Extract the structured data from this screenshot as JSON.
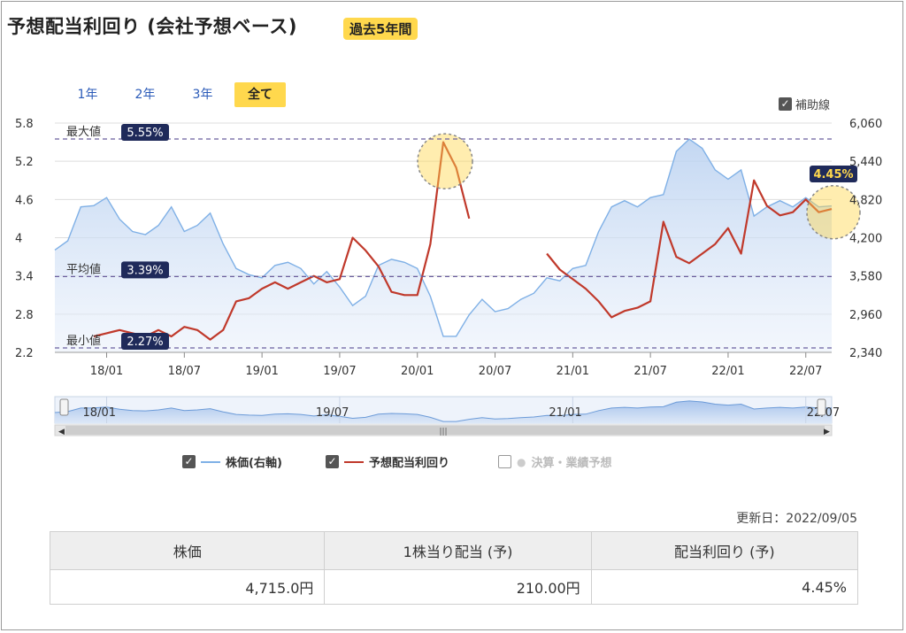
{
  "header": {
    "title": "予想配当利回り (会社予想ベース)",
    "badge": "過去5年間"
  },
  "range_buttons": [
    {
      "label": "1年",
      "active": false
    },
    {
      "label": "2年",
      "active": false
    },
    {
      "label": "3年",
      "active": false
    },
    {
      "label": "全て",
      "active": true
    }
  ],
  "aux_lines_label": "補助線",
  "colors": {
    "price": "#7fb0e6",
    "yield": "#c0392b",
    "accent": "#ffd84d",
    "label_bg": "#1f2a5a"
  },
  "chart_data": {
    "type": "line",
    "x_ticks": [
      "18/01",
      "18/07",
      "19/01",
      "19/07",
      "20/01",
      "20/07",
      "21/01",
      "21/07",
      "22/01",
      "22/07"
    ],
    "left_axis": {
      "ticks": [
        "5.8",
        "5.2",
        "4.6",
        "4",
        "3.4",
        "2.8",
        "2.2"
      ],
      "ylim": [
        2.2,
        5.8
      ]
    },
    "right_axis": {
      "ticks": [
        "6,060",
        "5,440",
        "4,820",
        "4,200",
        "3,580",
        "2,960",
        "2,340"
      ],
      "ylim": [
        2340,
        6060
      ]
    },
    "reference_lines": [
      {
        "label": "最大値",
        "value_label": "5.55%",
        "value": 5.55
      },
      {
        "label": "平均値",
        "value_label": "3.39%",
        "value": 3.39
      },
      {
        "label": "最小値",
        "value_label": "2.27%",
        "value": 2.27
      }
    ],
    "current_label": "4.45%",
    "series": [
      {
        "name": "株価(右軸)",
        "axis": "right",
        "points": [
          [
            "2017-09",
            4000
          ],
          [
            "2017-10",
            4150
          ],
          [
            "2017-11",
            4700
          ],
          [
            "2017-12",
            4720
          ],
          [
            "2018-01",
            4850
          ],
          [
            "2018-02",
            4500
          ],
          [
            "2018-03",
            4300
          ],
          [
            "2018-04",
            4250
          ],
          [
            "2018-05",
            4400
          ],
          [
            "2018-06",
            4700
          ],
          [
            "2018-07",
            4300
          ],
          [
            "2018-08",
            4400
          ],
          [
            "2018-09",
            4600
          ],
          [
            "2018-10",
            4100
          ],
          [
            "2018-11",
            3700
          ],
          [
            "2018-12",
            3600
          ],
          [
            "2019-01",
            3550
          ],
          [
            "2019-02",
            3750
          ],
          [
            "2019-03",
            3800
          ],
          [
            "2019-04",
            3700
          ],
          [
            "2019-05",
            3450
          ],
          [
            "2019-06",
            3650
          ],
          [
            "2019-07",
            3400
          ],
          [
            "2019-08",
            3100
          ],
          [
            "2019-09",
            3250
          ],
          [
            "2019-10",
            3750
          ],
          [
            "2019-11",
            3850
          ],
          [
            "2019-12",
            3800
          ],
          [
            "2020-01",
            3700
          ],
          [
            "2020-02",
            3250
          ],
          [
            "2020-03",
            2600
          ],
          [
            "2020-04",
            2600
          ],
          [
            "2020-05",
            2950
          ],
          [
            "2020-06",
            3200
          ],
          [
            "2020-07",
            3000
          ],
          [
            "2020-08",
            3050
          ],
          [
            "2020-09",
            3200
          ],
          [
            "2020-10",
            3300
          ],
          [
            "2020-11",
            3550
          ],
          [
            "2020-12",
            3500
          ],
          [
            "2021-01",
            3700
          ],
          [
            "2021-02",
            3750
          ],
          [
            "2021-03",
            4300
          ],
          [
            "2021-04",
            4700
          ],
          [
            "2021-05",
            4800
          ],
          [
            "2021-06",
            4700
          ],
          [
            "2021-07",
            4850
          ],
          [
            "2021-08",
            4900
          ],
          [
            "2021-09",
            5600
          ],
          [
            "2021-10",
            5800
          ],
          [
            "2021-11",
            5650
          ],
          [
            "2021-12",
            5300
          ],
          [
            "2022-01",
            5150
          ],
          [
            "2022-02",
            5300
          ],
          [
            "2022-03",
            4550
          ],
          [
            "2022-04",
            4700
          ],
          [
            "2022-05",
            4800
          ],
          [
            "2022-06",
            4700
          ],
          [
            "2022-07",
            4850
          ],
          [
            "2022-08",
            4700
          ],
          [
            "2022-09",
            4715
          ]
        ]
      },
      {
        "name": "予想配当利回り",
        "axis": "left",
        "segments": [
          [
            [
              "2017-12",
              2.45
            ],
            [
              "2018-01",
              2.5
            ],
            [
              "2018-02",
              2.55
            ],
            [
              "2018-03",
              2.5
            ],
            [
              "2018-04",
              2.45
            ],
            [
              "2018-05",
              2.55
            ],
            [
              "2018-06",
              2.45
            ],
            [
              "2018-07",
              2.6
            ],
            [
              "2018-08",
              2.55
            ],
            [
              "2018-09",
              2.4
            ],
            [
              "2018-10",
              2.55
            ],
            [
              "2018-11",
              3.0
            ],
            [
              "2018-12",
              3.05
            ],
            [
              "2019-01",
              3.2
            ],
            [
              "2019-02",
              3.3
            ],
            [
              "2019-03",
              3.2
            ],
            [
              "2019-04",
              3.3
            ],
            [
              "2019-05",
              3.4
            ],
            [
              "2019-06",
              3.3
            ],
            [
              "2019-07",
              3.35
            ],
            [
              "2019-08",
              4.0
            ],
            [
              "2019-09",
              3.8
            ],
            [
              "2019-10",
              3.55
            ],
            [
              "2019-11",
              3.15
            ],
            [
              "2019-12",
              3.1
            ],
            [
              "2020-01",
              3.1
            ],
            [
              "2020-02",
              3.9
            ],
            [
              "2020-03",
              5.5
            ],
            [
              "2020-04",
              5.1
            ],
            [
              "2020-05",
              4.3
            ]
          ],
          [
            [
              "2020-11",
              3.75
            ],
            [
              "2020-12",
              3.5
            ],
            [
              "2021-01",
              3.35
            ],
            [
              "2021-02",
              3.2
            ],
            [
              "2021-03",
              3.0
            ],
            [
              "2021-04",
              2.75
            ],
            [
              "2021-05",
              2.85
            ],
            [
              "2021-06",
              2.9
            ],
            [
              "2021-07",
              3.0
            ],
            [
              "2021-08",
              4.25
            ],
            [
              "2021-09",
              3.7
            ],
            [
              "2021-10",
              3.6
            ],
            [
              "2021-11",
              3.75
            ],
            [
              "2021-12",
              3.9
            ],
            [
              "2022-01",
              4.15
            ],
            [
              "2022-02",
              3.75
            ],
            [
              "2022-03",
              4.9
            ],
            [
              "2022-04",
              4.5
            ],
            [
              "2022-05",
              4.35
            ],
            [
              "2022-06",
              4.4
            ],
            [
              "2022-07",
              4.6
            ],
            [
              "2022-08",
              4.4
            ],
            [
              "2022-09",
              4.45
            ]
          ]
        ]
      }
    ]
  },
  "navigator": {
    "ticks": [
      "18/01",
      "19/07",
      "21/01",
      "22/07"
    ]
  },
  "legend": [
    {
      "label": "株価(右軸)",
      "checked": true
    },
    {
      "label": "予想配当利回り",
      "checked": true
    },
    {
      "label": "決算・業績予想",
      "checked": false
    }
  ],
  "updated": "更新日：2022/09/05",
  "summary": {
    "headers": [
      "株価",
      "1株当り配当 (予)",
      "配当利回り (予)"
    ],
    "values": [
      "4,715.0円",
      "210.00円",
      "4.45%"
    ]
  }
}
